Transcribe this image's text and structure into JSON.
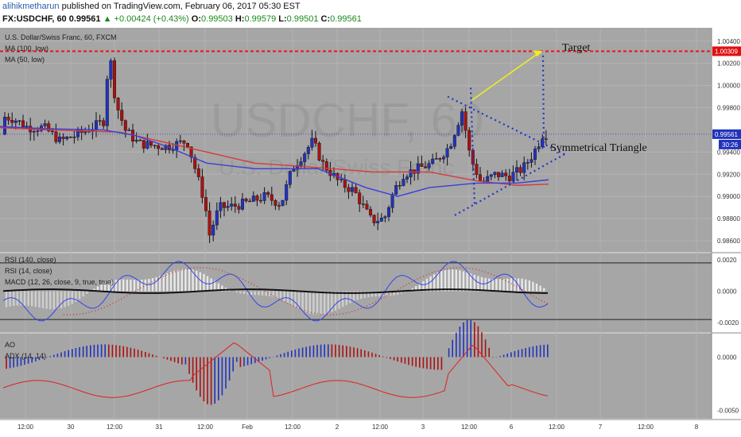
{
  "header": {
    "author": "alihikmetharun",
    "published": "published on TradingView.com, February 06, 2017 05:30 EST",
    "symbol": "FX:USDCHF, 60",
    "last": "0.99561",
    "change": "▲ +0.00424 (+0.43%)",
    "o_label": "O:",
    "o": "0.99503",
    "h_label": "H:",
    "h": "0.99579",
    "l_label": "L:",
    "l": "0.99501",
    "c_label": "C:",
    "c": "0.99561"
  },
  "price_panel": {
    "title": "U.S. Dollar/Swiss Franc, 60, FXCM",
    "ma100": "MA (100, low)",
    "ma50": "MA (50, low)",
    "watermark_big": "USDCHF, 60",
    "watermark_small": "U.S. Dollar/Swiss Franc",
    "target_label": "Target",
    "pattern_label": "Symmetrical Triangle",
    "axis_labels": [
      "1.00400",
      "1.00200",
      "1.00000",
      "0.99800",
      "0.99400",
      "0.99200",
      "0.99000",
      "0.98800",
      "0.98600"
    ],
    "target_price_tag": "1.00309",
    "last_price_tag": "0.99561",
    "countdown_tag": "30:26"
  },
  "osc_panel": {
    "rsi140": "RSI (140, close)",
    "rsi14": "RSI (14, close)",
    "macd": "MACD (12, 26, close, 9, true, true)",
    "axis_labels": [
      "0.0020",
      "0.0000",
      "-0.0020"
    ]
  },
  "ao_panel": {
    "ao": "AO",
    "adx": "ADX (14, 14)",
    "axis_labels": [
      "0.0000",
      "-0.0050"
    ]
  },
  "time_axis": [
    "12:00",
    "30",
    "12:00",
    "31",
    "12:00",
    "Feb",
    "12:00",
    "2",
    "12:00",
    "3",
    "12:00",
    "6",
    "12:00",
    "7",
    "12:00",
    "8"
  ],
  "colors": {
    "panel_bg": "#a6a6a6",
    "bull": "#2233bb",
    "bear": "#aa1111",
    "ma100": "#d83a3a",
    "ma50": "#3a3fd8",
    "target_line": "#ee1111",
    "triangle": "#2233cc",
    "arrow": "#eeee22"
  },
  "chart_data": [
    {
      "type": "candlestick",
      "title": "U.S. Dollar/Swiss Franc, 60, FXCM",
      "x": [
        "Jan 30",
        "Jan 31",
        "Feb 1",
        "Feb 2",
        "Feb 3",
        "Feb 6",
        "Feb 7",
        "Feb 8"
      ],
      "ylim": [
        0.985,
        1.0052
      ],
      "moving_averages": [
        "MA (100, low)",
        "MA (50, low)"
      ],
      "target_level": 1.00309,
      "last_price": 0.99561,
      "ohlc_last": {
        "open": 0.99503,
        "high": 0.99579,
        "low": 0.99501,
        "close": 0.99561
      }
    },
    {
      "type": "line",
      "series": [
        {
          "name": "RSI (140, close)"
        },
        {
          "name": "RSI (14, close)"
        },
        {
          "name": "MACD (12, 26, close, 9, true, true)"
        }
      ],
      "ylim": [
        -0.0026,
        0.0024
      ]
    },
    {
      "type": "bar",
      "series": [
        {
          "name": "AO"
        },
        {
          "name": "ADX (14, 14)"
        }
      ],
      "ylim": [
        -0.0058,
        0.0022
      ]
    }
  ]
}
